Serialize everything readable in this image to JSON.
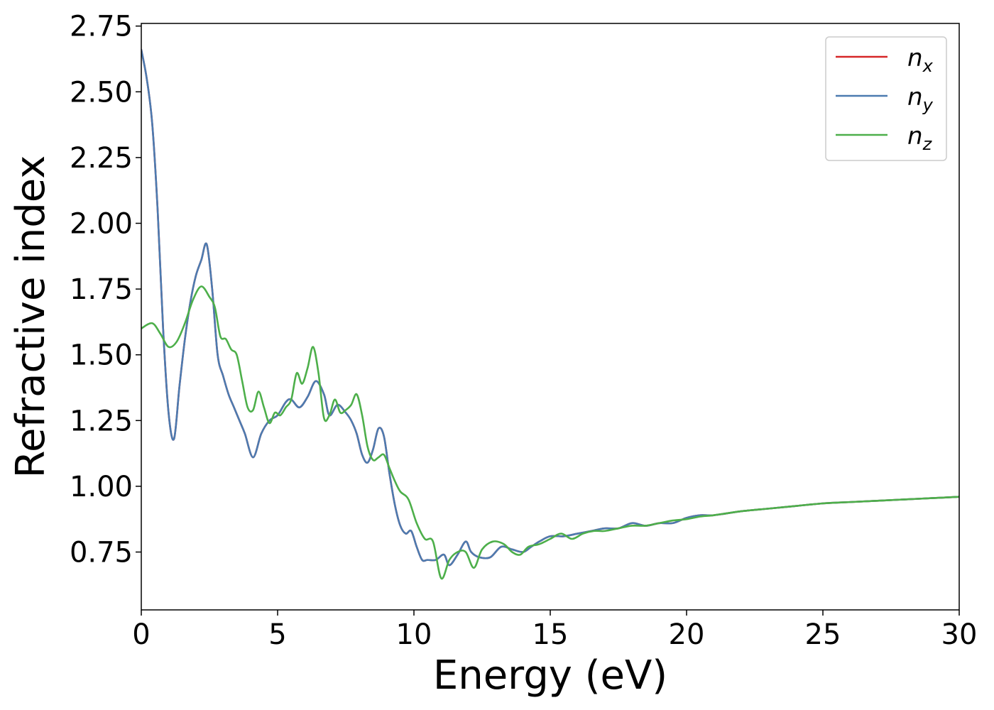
{
  "chart_data": {
    "type": "line",
    "title": "",
    "xlabel": "Energy (eV)",
    "ylabel": "Refractive index",
    "xlim": [
      0,
      30
    ],
    "ylim": [
      0.53,
      2.76
    ],
    "xticks": [
      0,
      5,
      10,
      15,
      20,
      25,
      30
    ],
    "xtick_labels": [
      "0",
      "5",
      "10",
      "15",
      "20",
      "25",
      "30"
    ],
    "yticks": [
      0.75,
      1.0,
      1.25,
      1.5,
      1.75,
      2.0,
      2.25,
      2.5,
      2.75
    ],
    "ytick_labels": [
      "0.75",
      "1.00",
      "1.25",
      "1.50",
      "1.75",
      "2.00",
      "2.25",
      "2.50",
      "2.75"
    ],
    "grid": false,
    "legend_position": "top-right",
    "series": [
      {
        "name": "n_x",
        "label_main": "n",
        "label_sub": "x",
        "color": "#d62728",
        "x": [
          0,
          0.2,
          0.4,
          0.6,
          0.8,
          1.0,
          1.2,
          1.4,
          1.6,
          1.8,
          2.0,
          2.2,
          2.4,
          2.6,
          2.8,
          3.0,
          3.2,
          3.4,
          3.6,
          3.8,
          4.1,
          4.4,
          4.7,
          5.0,
          5.3,
          5.5,
          5.8,
          6.1,
          6.4,
          6.7,
          6.9,
          7.2,
          7.5,
          7.7,
          7.9,
          8.1,
          8.3,
          8.5,
          8.7,
          8.9,
          9.1,
          9.3,
          9.5,
          9.7,
          9.9,
          10.1,
          10.3,
          10.5,
          10.8,
          11.1,
          11.3,
          11.6,
          11.9,
          12.1,
          12.4,
          12.8,
          13.2,
          13.6,
          14.0,
          14.3,
          14.6,
          15.0,
          15.5,
          16.0,
          16.5,
          17.0,
          17.5,
          18.0,
          18.5,
          19.0,
          19.5,
          20.0,
          20.5,
          21.0,
          22.0,
          23.0,
          24.0,
          25.0,
          26.0,
          27.0,
          28.0,
          29.0,
          30.0
        ],
        "y": [
          2.66,
          2.55,
          2.38,
          2.05,
          1.6,
          1.28,
          1.18,
          1.38,
          1.56,
          1.7,
          1.8,
          1.86,
          1.92,
          1.75,
          1.5,
          1.42,
          1.35,
          1.3,
          1.25,
          1.2,
          1.11,
          1.2,
          1.25,
          1.27,
          1.32,
          1.33,
          1.3,
          1.34,
          1.4,
          1.35,
          1.27,
          1.31,
          1.28,
          1.25,
          1.2,
          1.12,
          1.09,
          1.14,
          1.22,
          1.19,
          1.05,
          0.93,
          0.85,
          0.82,
          0.83,
          0.77,
          0.72,
          0.72,
          0.72,
          0.74,
          0.7,
          0.74,
          0.79,
          0.75,
          0.73,
          0.73,
          0.77,
          0.76,
          0.75,
          0.77,
          0.79,
          0.81,
          0.81,
          0.82,
          0.83,
          0.84,
          0.84,
          0.86,
          0.85,
          0.86,
          0.86,
          0.88,
          0.89,
          0.89,
          0.905,
          0.915,
          0.925,
          0.935,
          0.94,
          0.945,
          0.95,
          0.955,
          0.96
        ]
      },
      {
        "name": "n_y",
        "label_main": "n",
        "label_sub": "y",
        "color": "#4c7bb0",
        "x": [
          0,
          0.2,
          0.4,
          0.6,
          0.8,
          1.0,
          1.2,
          1.4,
          1.6,
          1.8,
          2.0,
          2.2,
          2.4,
          2.6,
          2.8,
          3.0,
          3.2,
          3.4,
          3.6,
          3.8,
          4.1,
          4.4,
          4.7,
          5.0,
          5.3,
          5.5,
          5.8,
          6.1,
          6.4,
          6.7,
          6.9,
          7.2,
          7.5,
          7.7,
          7.9,
          8.1,
          8.3,
          8.5,
          8.7,
          8.9,
          9.1,
          9.3,
          9.5,
          9.7,
          9.9,
          10.1,
          10.3,
          10.5,
          10.8,
          11.1,
          11.3,
          11.6,
          11.9,
          12.1,
          12.4,
          12.8,
          13.2,
          13.6,
          14.0,
          14.3,
          14.6,
          15.0,
          15.5,
          16.0,
          16.5,
          17.0,
          17.5,
          18.0,
          18.5,
          19.0,
          19.5,
          20.0,
          20.5,
          21.0,
          22.0,
          23.0,
          24.0,
          25.0,
          26.0,
          27.0,
          28.0,
          29.0,
          30.0
        ],
        "y": [
          2.66,
          2.55,
          2.38,
          2.05,
          1.6,
          1.28,
          1.18,
          1.38,
          1.56,
          1.7,
          1.8,
          1.86,
          1.92,
          1.75,
          1.5,
          1.42,
          1.35,
          1.3,
          1.25,
          1.2,
          1.11,
          1.2,
          1.25,
          1.27,
          1.32,
          1.33,
          1.3,
          1.34,
          1.4,
          1.35,
          1.27,
          1.31,
          1.28,
          1.25,
          1.2,
          1.12,
          1.09,
          1.14,
          1.22,
          1.19,
          1.05,
          0.93,
          0.85,
          0.82,
          0.83,
          0.77,
          0.72,
          0.72,
          0.72,
          0.74,
          0.7,
          0.74,
          0.79,
          0.75,
          0.73,
          0.73,
          0.77,
          0.76,
          0.75,
          0.77,
          0.79,
          0.81,
          0.81,
          0.82,
          0.83,
          0.84,
          0.84,
          0.86,
          0.85,
          0.86,
          0.86,
          0.88,
          0.89,
          0.89,
          0.905,
          0.915,
          0.925,
          0.935,
          0.94,
          0.945,
          0.95,
          0.955,
          0.96
        ]
      },
      {
        "name": "n_z",
        "label_main": "n",
        "label_sub": "z",
        "color": "#4daf4a",
        "x": [
          0,
          0.4,
          0.7,
          1.0,
          1.3,
          1.6,
          1.9,
          2.2,
          2.5,
          2.7,
          2.9,
          3.1,
          3.3,
          3.5,
          3.7,
          3.9,
          4.1,
          4.3,
          4.5,
          4.7,
          4.9,
          5.1,
          5.3,
          5.5,
          5.7,
          5.9,
          6.1,
          6.3,
          6.5,
          6.7,
          6.9,
          7.1,
          7.3,
          7.5,
          7.7,
          7.9,
          8.1,
          8.3,
          8.5,
          8.7,
          8.9,
          9.1,
          9.3,
          9.5,
          9.8,
          10.1,
          10.4,
          10.7,
          11.0,
          11.3,
          11.6,
          11.9,
          12.2,
          12.5,
          12.9,
          13.3,
          13.6,
          13.9,
          14.2,
          14.6,
          15.0,
          15.4,
          15.8,
          16.2,
          16.6,
          17.0,
          17.5,
          18.0,
          18.5,
          19.0,
          19.5,
          20.0,
          20.5,
          21.0,
          22.0,
          23.0,
          24.0,
          25.0,
          26.0,
          27.0,
          28.0,
          29.0,
          30.0
        ],
        "y": [
          1.6,
          1.62,
          1.58,
          1.53,
          1.55,
          1.62,
          1.71,
          1.76,
          1.72,
          1.68,
          1.57,
          1.56,
          1.52,
          1.5,
          1.4,
          1.3,
          1.29,
          1.36,
          1.3,
          1.24,
          1.28,
          1.27,
          1.3,
          1.33,
          1.43,
          1.39,
          1.45,
          1.53,
          1.43,
          1.26,
          1.27,
          1.33,
          1.28,
          1.29,
          1.31,
          1.35,
          1.27,
          1.15,
          1.1,
          1.11,
          1.12,
          1.07,
          1.02,
          0.98,
          0.95,
          0.86,
          0.8,
          0.79,
          0.65,
          0.72,
          0.75,
          0.75,
          0.69,
          0.76,
          0.79,
          0.78,
          0.75,
          0.74,
          0.77,
          0.78,
          0.8,
          0.82,
          0.8,
          0.82,
          0.83,
          0.83,
          0.84,
          0.85,
          0.85,
          0.86,
          0.87,
          0.875,
          0.885,
          0.89,
          0.905,
          0.915,
          0.925,
          0.935,
          0.94,
          0.945,
          0.95,
          0.955,
          0.96
        ]
      }
    ]
  }
}
